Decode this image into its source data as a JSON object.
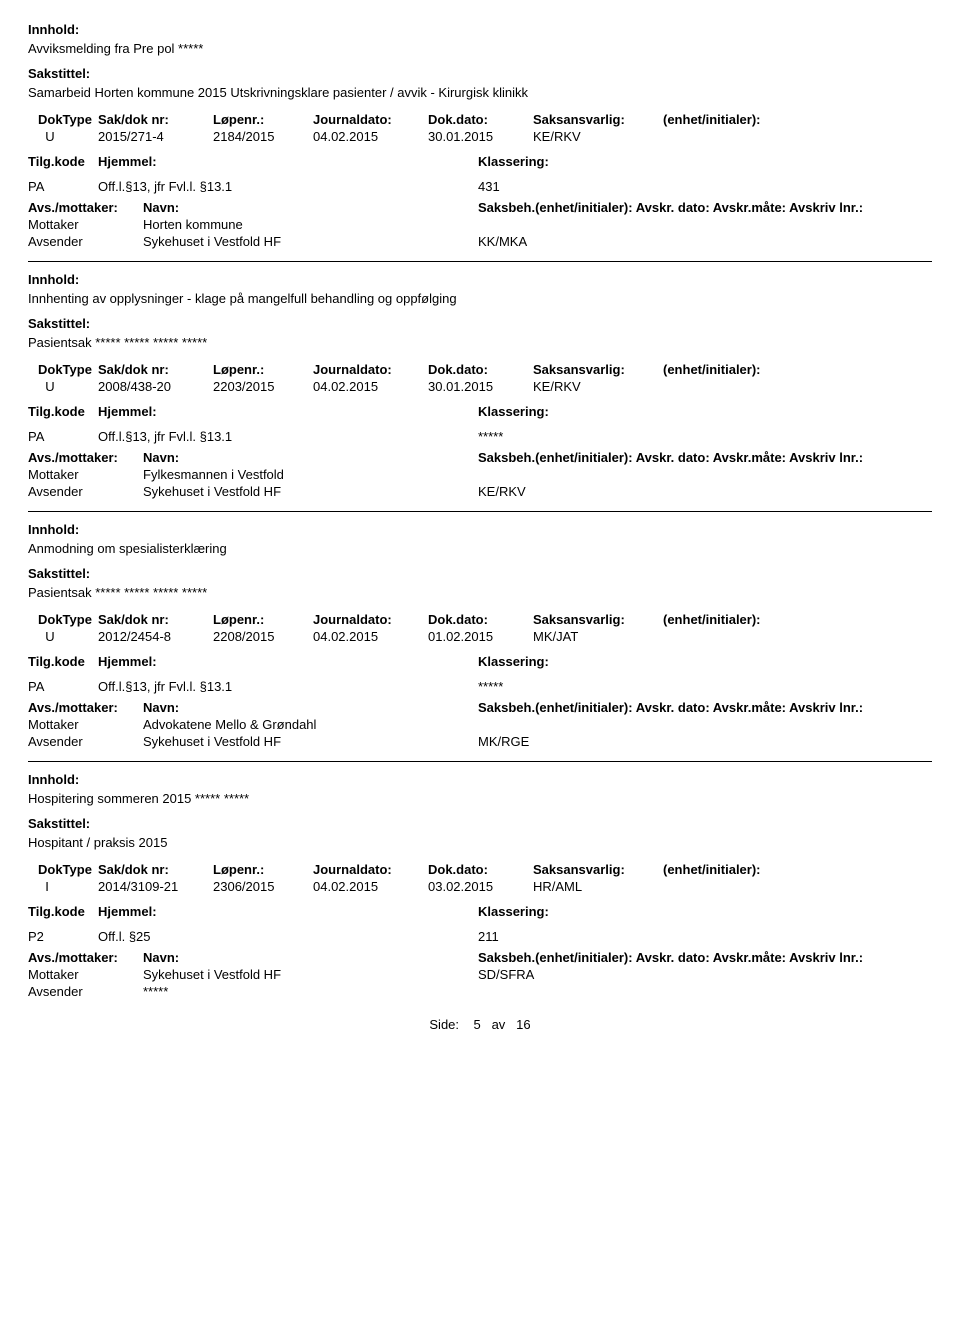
{
  "labels": {
    "innhold": "Innhold:",
    "sakstittel": "Sakstittel:",
    "doktype": "DokType",
    "saknr": "Sak/dok nr:",
    "lopenr": "Løpenr.:",
    "jdato": "Journaldato:",
    "ddato": "Dok.dato:",
    "ansvarlig": "Saksansvarlig:",
    "enhet": "(enhet/initialer):",
    "tilgkode": "Tilg.kode",
    "hjemmel": "Hjemmel:",
    "klassering": "Klassering:",
    "avsmottaker": "Avs./mottaker:",
    "navn": "Navn:",
    "saksbeh_line": "Saksbeh.(enhet/initialer): Avskr. dato:  Avskr.måte: Avskriv lnr.:",
    "mottaker": "Mottaker",
    "avsender": "Avsender",
    "side": "Side:",
    "av": "av"
  },
  "records": [
    {
      "innhold": "Avviksmelding fra Pre pol *****",
      "sakstittel": "Samarbeid Horten kommune 2015 Utskrivningsklare pasienter / avvik - Kirurgisk klinikk",
      "doktype": "U",
      "saknr": "2015/271-4",
      "lopenr": "2184/2015",
      "jdato": "04.02.2015",
      "ddato": "30.01.2015",
      "ansvarlig": "KE/RKV",
      "enhet": "",
      "tilgkode": "PA",
      "hjemmel": "Off.l.§13, jfr Fvl.l. §13.1",
      "klassering": "431",
      "parties": [
        {
          "role": "Mottaker",
          "navn": "Horten kommune",
          "saksbeh": ""
        },
        {
          "role": "Avsender",
          "navn": "Sykehuset i Vestfold HF",
          "saksbeh": "KK/MKA"
        }
      ]
    },
    {
      "innhold": "Innhenting av opplysninger - klage på mangelfull behandling og oppfølging",
      "sakstittel": "Pasientsak ***** ***** ***** *****",
      "doktype": "U",
      "saknr": "2008/438-20",
      "lopenr": "2203/2015",
      "jdato": "04.02.2015",
      "ddato": "30.01.2015",
      "ansvarlig": "KE/RKV",
      "enhet": "",
      "tilgkode": "PA",
      "hjemmel": "Off.l.§13, jfr Fvl.l. §13.1",
      "klassering": "*****",
      "parties": [
        {
          "role": "Mottaker",
          "navn": "Fylkesmannen i Vestfold",
          "saksbeh": ""
        },
        {
          "role": "Avsender",
          "navn": "Sykehuset i Vestfold HF",
          "saksbeh": "KE/RKV"
        }
      ]
    },
    {
      "innhold": "Anmodning om spesialisterklæring",
      "sakstittel": "Pasientsak ***** ***** ***** *****",
      "doktype": "U",
      "saknr": "2012/2454-8",
      "lopenr": "2208/2015",
      "jdato": "04.02.2015",
      "ddato": "01.02.2015",
      "ansvarlig": "MK/JAT",
      "enhet": "",
      "tilgkode": "PA",
      "hjemmel": "Off.l.§13, jfr Fvl.l. §13.1",
      "klassering": "*****",
      "parties": [
        {
          "role": "Mottaker",
          "navn": "Advokatene Mello & Grøndahl",
          "saksbeh": ""
        },
        {
          "role": "Avsender",
          "navn": "Sykehuset i Vestfold HF",
          "saksbeh": "MK/RGE"
        }
      ]
    },
    {
      "innhold": "Hospitering sommeren 2015 ***** *****",
      "sakstittel": "Hospitant / praksis 2015",
      "doktype": "I",
      "saknr": "2014/3109-21",
      "lopenr": "2306/2015",
      "jdato": "04.02.2015",
      "ddato": "03.02.2015",
      "ansvarlig": "HR/AML",
      "enhet": "",
      "tilgkode": "P2",
      "hjemmel": "Off.l. §25",
      "klassering": "211",
      "parties": [
        {
          "role": "Mottaker",
          "navn": "Sykehuset i Vestfold HF",
          "saksbeh": "SD/SFRA"
        },
        {
          "role": "Avsender",
          "navn": "*****",
          "saksbeh": ""
        }
      ]
    }
  ],
  "page": {
    "current": "5",
    "total": "16"
  }
}
